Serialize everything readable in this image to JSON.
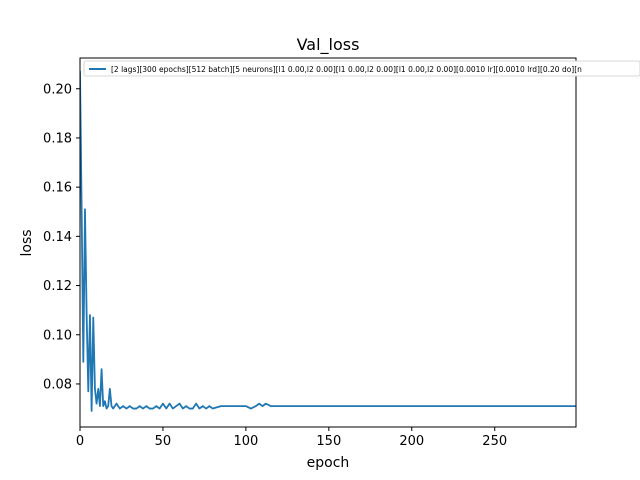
{
  "chart_data": {
    "type": "line",
    "title": "Val_loss",
    "xlabel": "epoch",
    "ylabel": "loss",
    "xlim": [
      0,
      299
    ],
    "ylim": [
      0.0625,
      0.2125
    ],
    "xticks": [
      0,
      50,
      100,
      150,
      200,
      250
    ],
    "yticks": [
      0.08,
      0.1,
      0.12,
      0.14,
      0.16,
      0.18,
      0.2
    ],
    "xtick_labels": [
      "0",
      "50",
      "100",
      "150",
      "200",
      "250"
    ],
    "ytick_labels": [
      "0.08",
      "0.10",
      "0.12",
      "0.14",
      "0.16",
      "0.18",
      "0.20"
    ],
    "grid": false,
    "legend_position": "top-left",
    "series": [
      {
        "name": "[2 lags][300 epochs][512 batch][5 neurons][l1 0.00,l2 0.00][l1 0.00,l2 0.00][l1 0.00,l2 0.00][0.0010 lr][0.0010 lrd][0.20 do][n",
        "color": "#1f77b4",
        "x": [
          0,
          1,
          2,
          3,
          4,
          5,
          6,
          7,
          8,
          9,
          10,
          11,
          12,
          13,
          14,
          15,
          16,
          17,
          18,
          19,
          20,
          22,
          24,
          26,
          28,
          30,
          32,
          34,
          36,
          38,
          40,
          42,
          44,
          46,
          48,
          50,
          52,
          54,
          56,
          58,
          60,
          62,
          64,
          66,
          68,
          70,
          72,
          74,
          76,
          78,
          80,
          85,
          90,
          95,
          100,
          103,
          106,
          108,
          110,
          112,
          115,
          120,
          125,
          130,
          140,
          150,
          160,
          170,
          180,
          190,
          200,
          210,
          220,
          230,
          240,
          250,
          260,
          270,
          280,
          290,
          299
        ],
        "y": [
          0.207,
          0.15,
          0.089,
          0.151,
          0.108,
          0.077,
          0.108,
          0.069,
          0.107,
          0.078,
          0.072,
          0.078,
          0.071,
          0.086,
          0.071,
          0.073,
          0.07,
          0.071,
          0.078,
          0.071,
          0.07,
          0.072,
          0.07,
          0.071,
          0.07,
          0.071,
          0.07,
          0.07,
          0.071,
          0.07,
          0.071,
          0.07,
          0.07,
          0.071,
          0.07,
          0.072,
          0.07,
          0.072,
          0.07,
          0.071,
          0.072,
          0.07,
          0.071,
          0.07,
          0.07,
          0.072,
          0.07,
          0.071,
          0.07,
          0.071,
          0.07,
          0.071,
          0.071,
          0.071,
          0.071,
          0.07,
          0.071,
          0.072,
          0.071,
          0.072,
          0.071,
          0.071,
          0.071,
          0.071,
          0.071,
          0.071,
          0.071,
          0.071,
          0.071,
          0.071,
          0.071,
          0.071,
          0.071,
          0.071,
          0.071,
          0.071,
          0.071,
          0.071,
          0.071,
          0.071,
          0.071
        ]
      }
    ]
  }
}
